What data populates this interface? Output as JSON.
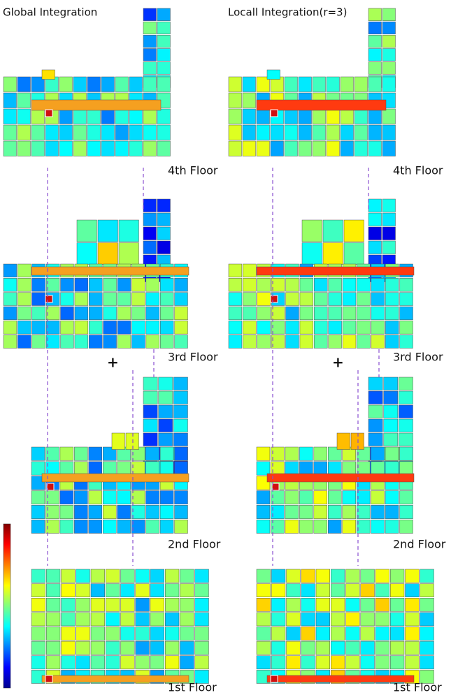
{
  "columns": [
    {
      "title": "Global Integration",
      "floors": [
        "4th Floor",
        "3rd Floor",
        "2nd Floor",
        "1st Floor"
      ],
      "marker": "+"
    },
    {
      "title": "Locall Integration(r=3)",
      "floors": [
        "4th Floor",
        "3rd Floor",
        "2nd Floor",
        "1st Floor"
      ],
      "marker": "+"
    }
  ]
}
